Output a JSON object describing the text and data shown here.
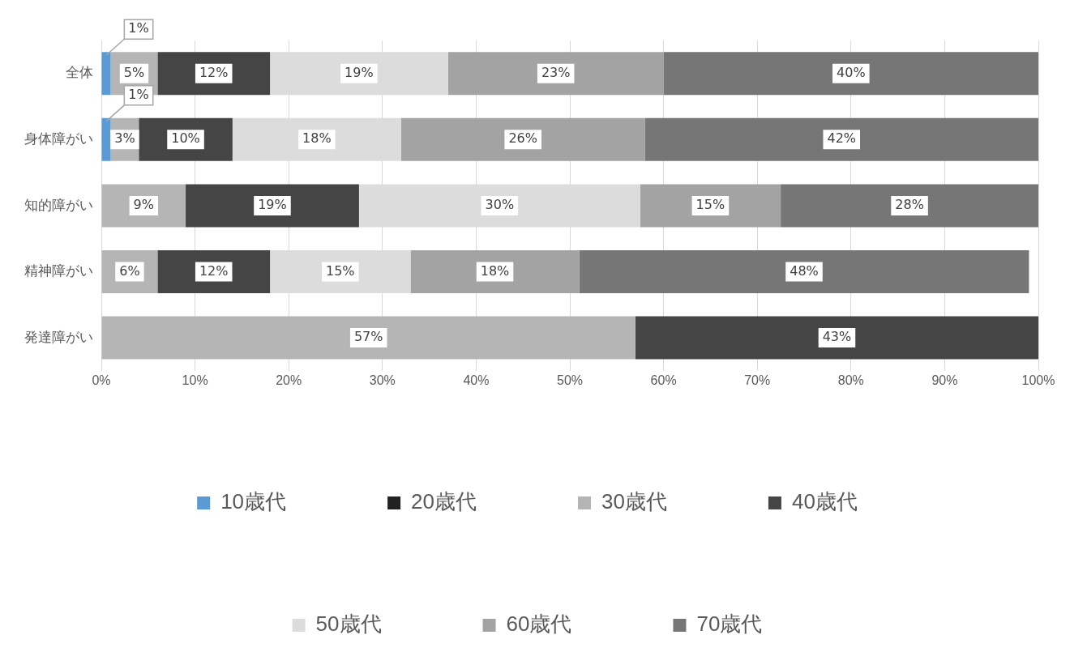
{
  "chart_data": {
    "type": "bar",
    "orientation": "horizontal",
    "stacked": true,
    "categories": [
      "全体",
      "身体障がい",
      "知的障がい",
      "精神障がい",
      "発達障がい"
    ],
    "series": [
      {
        "name": "10歳代",
        "color": "#5b9bd5",
        "values": [
          1,
          1,
          0,
          0,
          0
        ],
        "value_labels": [
          "1%",
          "1%",
          null,
          null,
          null
        ]
      },
      {
        "name": "20歳代",
        "color": "#222222",
        "values": [
          0,
          0,
          0,
          0,
          0
        ],
        "value_labels": [
          null,
          null,
          null,
          null,
          null
        ]
      },
      {
        "name": "30歳代",
        "color": "#b5b5b5",
        "values": [
          5,
          3,
          9,
          6,
          57
        ],
        "value_labels": [
          "5%",
          "3%",
          "9%",
          "6%",
          "57%"
        ]
      },
      {
        "name": "40歳代",
        "color": "#454545",
        "values": [
          12,
          10,
          18.5,
          12,
          43
        ],
        "value_labels": [
          "12%",
          "10%",
          "19%",
          "12%",
          "43%"
        ]
      },
      {
        "name": "50歳代",
        "color": "#dcdcdc",
        "values": [
          19,
          18,
          30,
          15,
          0
        ],
        "value_labels": [
          "19%",
          "18%",
          "30%",
          "15%",
          null
        ]
      },
      {
        "name": "60歳代",
        "color": "#a3a3a3",
        "values": [
          23,
          26,
          15,
          18,
          0
        ],
        "value_labels": [
          "23%",
          "26%",
          "15%",
          "18%",
          null
        ]
      },
      {
        "name": "70歳代",
        "color": "#767676",
        "values": [
          40,
          42,
          27.5,
          48,
          0
        ],
        "value_labels": [
          "40%",
          "42%",
          "28%",
          "48%",
          null
        ]
      }
    ],
    "xlim": [
      0,
      100
    ],
    "xticks": [
      {
        "value": 0,
        "label": "0%"
      },
      {
        "value": 10,
        "label": "10%"
      },
      {
        "value": 20,
        "label": "20%"
      },
      {
        "value": 30,
        "label": "30%"
      },
      {
        "value": 40,
        "label": "40%"
      },
      {
        "value": 50,
        "label": "50%"
      },
      {
        "value": 60,
        "label": "60%"
      },
      {
        "value": 70,
        "label": "70%"
      },
      {
        "value": 80,
        "label": "80%"
      },
      {
        "value": 90,
        "label": "90%"
      },
      {
        "value": 100,
        "label": "100%"
      }
    ],
    "grid": "x",
    "legend": "bottom"
  }
}
